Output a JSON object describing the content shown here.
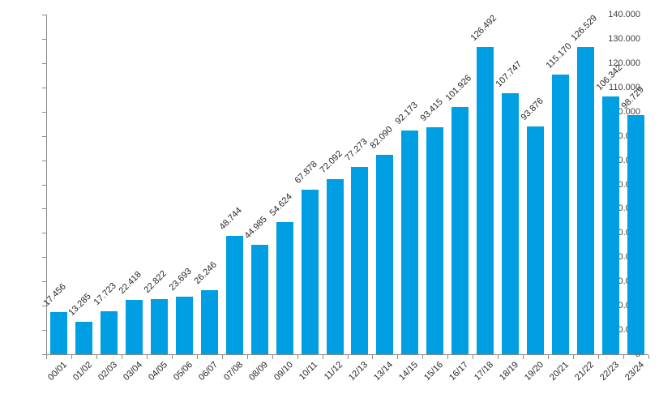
{
  "chart_data": {
    "type": "bar",
    "title": "",
    "xlabel": "",
    "ylabel": "",
    "categories": [
      "00/01",
      "01/02",
      "02/03",
      "03/04",
      "04/05",
      "05/06",
      "06/07",
      "07/08",
      "08/09",
      "09/10",
      "10/11",
      "11/12",
      "12/13",
      "13/14",
      "14/15",
      "15/16",
      "16/17",
      "17/18",
      "18/19",
      "19/20",
      "20/21",
      "21/22",
      "22/23",
      "23/24"
    ],
    "values": [
      17456,
      13285,
      17723,
      22418,
      22822,
      23693,
      26246,
      48744,
      44985,
      54624,
      67878,
      72092,
      77273,
      82090,
      92173,
      93415,
      101926,
      126492,
      107747,
      93876,
      115170,
      126529,
      106342,
      98729
    ],
    "value_labels": [
      "17.456",
      "13.285",
      "17.723",
      "22.418",
      "22.822",
      "23.693",
      "26.246",
      "48.744",
      "44.985",
      "54.624",
      "67.878",
      "72.092",
      "77.273",
      "82.090",
      "92.173",
      "93.415",
      "101.926",
      "126.492",
      "107.747",
      "93.876",
      "115.170",
      "126.529",
      "106.342",
      "98.729"
    ],
    "y_tick_labels": [
      "0",
      "10.000",
      "20.000",
      "30.000",
      "40.000",
      "50.000",
      "60.000",
      "70.000",
      "80.000",
      "90.000",
      "100.000",
      "110.000",
      "120.000",
      "130.000",
      "140.000"
    ],
    "y_tick_values": [
      0,
      10000,
      20000,
      30000,
      40000,
      50000,
      60000,
      70000,
      80000,
      90000,
      100000,
      110000,
      120000,
      130000,
      140000
    ],
    "ylim": [
      0,
      140000
    ],
    "grid": false,
    "legend": false,
    "bar_color": "#009FE3",
    "axis_color": "#8c8c8c",
    "label_color": "#262626"
  }
}
